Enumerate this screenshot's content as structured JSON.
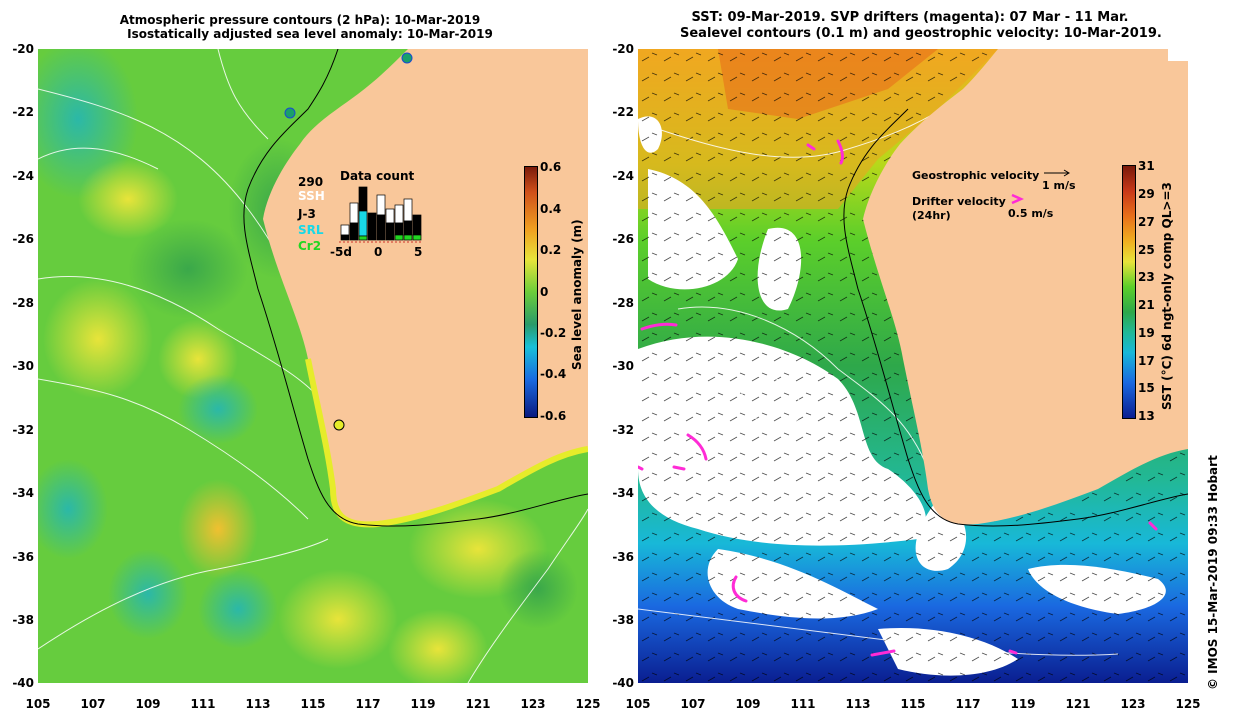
{
  "left_panel": {
    "title_line1": "Atmospheric pressure contours (2 hPa): 10-Mar-2019",
    "title_line2": "Isostatically adjusted sea level anomaly: 10-Mar-2019",
    "colorbar_label": "Sea level anomaly (m)",
    "colorbar_ticks": [
      "0.6",
      "0.4",
      "0.2",
      "0",
      "-0.2",
      "-0.4",
      "-0.6"
    ],
    "data_count": {
      "title": "Data count",
      "total": "290",
      "sources": [
        "SSH",
        "J-3",
        "SRL",
        "Cr2"
      ],
      "source_colors": [
        "#ffffff",
        "#000000",
        "#19d8e6",
        "#22d622"
      ],
      "axis_ticks": [
        "-5d",
        "0",
        "5"
      ]
    }
  },
  "right_panel": {
    "title_line1": "SST: 09-Mar-2019. SVP drifters (magenta): 07 Mar - 11 Mar.",
    "title_line2": "Sealevel contours (0.1 m) and geostrophic velocity: 10-Mar-2019.",
    "legend_geostrophic": "Geostrophic velocity",
    "legend_geostrophic_scale": "1 m/s",
    "legend_drifter": "Drifter velocity",
    "legend_drifter_sub": "(24hr)",
    "legend_drifter_scale": "0.5 m/s",
    "colorbar_label": "SST (°C) 6d ngt-only comp QL>=3",
    "colorbar_ticks": [
      "31",
      "29",
      "27",
      "25",
      "23",
      "21",
      "19",
      "17",
      "15",
      "13"
    ]
  },
  "y_ticks": [
    "-20",
    "-22",
    "-24",
    "-26",
    "-28",
    "-30",
    "-32",
    "-34",
    "-36",
    "-38",
    "-40"
  ],
  "x_ticks": [
    "105",
    "107",
    "109",
    "111",
    "113",
    "115",
    "117",
    "119",
    "121",
    "123",
    "125"
  ],
  "credit": "© IMOS 15-Mar-2019 09:33 Hobart",
  "colors": {
    "land": "#f9c79a",
    "sla_mid": "#5fcf3a",
    "drifter": "#ff2bd6"
  }
}
